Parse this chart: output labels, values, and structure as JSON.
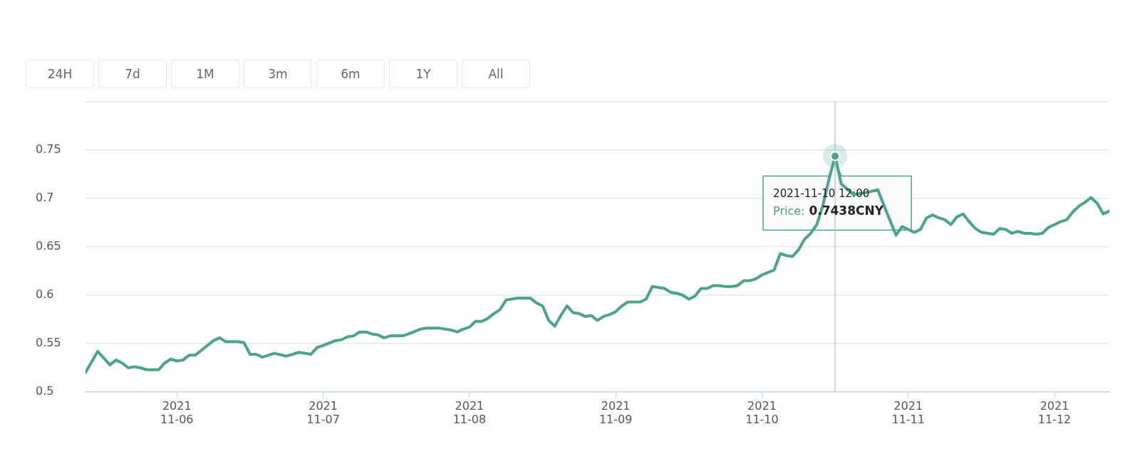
{
  "chart_data": {
    "type": "line",
    "x": [
      "2021-11-05T09:00",
      "2021-11-05T11:00",
      "2021-11-05T13:00",
      "2021-11-05T14:00",
      "2021-11-05T15:00",
      "2021-11-05T16:00",
      "2021-11-05T17:00",
      "2021-11-05T18:00",
      "2021-11-05T19:00",
      "2021-11-05T21:00",
      "2021-11-05T22:00",
      "2021-11-05T23:00",
      "2021-11-06T00:00",
      "2021-11-06T01:00",
      "2021-11-06T02:00",
      "2021-11-06T03:00",
      "2021-11-06T04:00",
      "2021-11-06T06:00",
      "2021-11-06T07:00",
      "2021-11-06T08:00",
      "2021-11-06T10:00",
      "2021-11-06T11:00",
      "2021-11-06T12:00",
      "2021-11-06T13:00",
      "2021-11-06T14:00",
      "2021-11-06T16:00",
      "2021-11-06T18:00",
      "2021-11-06T20:00",
      "2021-11-06T22:00",
      "2021-11-06T23:00",
      "2021-11-07T00:00",
      "2021-11-07T02:00",
      "2021-11-07T03:00",
      "2021-11-07T04:00",
      "2021-11-07T05:00",
      "2021-11-07T06:00",
      "2021-11-07T07:00",
      "2021-11-07T08:00",
      "2021-11-07T09:00",
      "2021-11-07T10:00",
      "2021-11-07T11:00",
      "2021-11-07T13:00",
      "2021-11-07T14:00",
      "2021-11-07T16:00",
      "2021-11-07T17:00",
      "2021-11-07T19:00",
      "2021-11-07T21:00",
      "2021-11-07T22:00",
      "2021-11-07T23:00",
      "2021-11-08T00:00",
      "2021-11-08T01:00",
      "2021-11-08T02:00",
      "2021-11-08T03:00",
      "2021-11-08T04:00",
      "2021-11-08T05:00",
      "2021-11-08T06:00",
      "2021-11-08T08:00",
      "2021-11-08T10:00",
      "2021-11-08T11:00",
      "2021-11-08T12:00",
      "2021-11-08T13:00",
      "2021-11-08T14:00",
      "2021-11-08T15:00",
      "2021-11-08T16:00",
      "2021-11-08T17:00",
      "2021-11-08T18:00",
      "2021-11-08T19:00",
      "2021-11-08T20:00",
      "2021-11-08T21:00",
      "2021-11-08T22:00",
      "2021-11-08T23:00",
      "2021-11-09T00:00",
      "2021-11-09T01:00",
      "2021-11-09T02:00",
      "2021-11-09T04:00",
      "2021-11-09T05:00",
      "2021-11-09T06:00",
      "2021-11-09T07:00",
      "2021-11-09T08:00",
      "2021-11-09T09:00",
      "2021-11-09T10:00",
      "2021-11-09T11:00",
      "2021-11-09T12:00",
      "2021-11-09T13:00",
      "2021-11-09T14:00",
      "2021-11-09T15:00",
      "2021-11-09T16:00",
      "2021-11-09T17:00",
      "2021-11-09T18:00",
      "2021-11-09T19:00",
      "2021-11-09T20:00",
      "2021-11-09T21:00",
      "2021-11-09T22:00",
      "2021-11-09T23:00",
      "2021-11-10T00:00",
      "2021-11-10T02:00",
      "2021-11-10T03:00",
      "2021-11-10T04:00",
      "2021-11-10T05:00",
      "2021-11-10T06:00",
      "2021-11-10T07:00",
      "2021-11-10T08:00",
      "2021-11-10T09:00",
      "2021-11-10T10:00",
      "2021-11-10T11:00",
      "2021-11-10T12:00",
      "2021-11-10T13:00",
      "2021-11-10T15:00",
      "2021-11-10T17:00",
      "2021-11-10T19:00",
      "2021-11-10T20:00",
      "2021-11-10T22:00",
      "2021-11-10T23:00",
      "2021-11-11T00:00",
      "2021-11-11T01:00",
      "2021-11-11T02:00",
      "2021-11-11T03:00",
      "2021-11-11T04:00",
      "2021-11-11T05:00",
      "2021-11-11T06:00",
      "2021-11-11T07:00",
      "2021-11-11T08:00",
      "2021-11-11T09:00",
      "2021-11-11T10:00",
      "2021-11-11T11:00",
      "2021-11-11T12:00",
      "2021-11-11T14:00",
      "2021-11-11T15:00",
      "2021-11-11T16:00",
      "2021-11-11T17:00",
      "2021-11-11T18:00",
      "2021-11-11T19:00",
      "2021-11-11T20:00",
      "2021-11-11T21:00",
      "2021-11-11T22:00",
      "2021-11-11T23:00",
      "2021-11-12T00:00",
      "2021-11-12T01:00",
      "2021-11-12T02:00",
      "2021-11-12T03:00",
      "2021-11-12T04:00",
      "2021-11-12T05:00",
      "2021-11-12T06:00",
      "2021-11-12T07:00",
      "2021-11-12T08:00",
      "2021-11-12T09:00"
    ],
    "series": [
      {
        "color": "#4aa38a",
        "values": [
          0.52,
          0.542,
          0.528,
          0.533,
          0.53,
          0.525,
          0.526,
          0.525,
          0.523,
          0.523,
          0.53,
          0.534,
          0.532,
          0.533,
          0.538,
          0.538,
          0.543,
          0.553,
          0.556,
          0.552,
          0.552,
          0.551,
          0.539,
          0.539,
          0.536,
          0.54,
          0.537,
          0.541,
          0.539,
          0.546,
          0.548,
          0.553,
          0.554,
          0.557,
          0.558,
          0.562,
          0.562,
          0.56,
          0.559,
          0.556,
          0.558,
          0.558,
          0.56,
          0.565,
          0.566,
          0.566,
          0.564,
          0.562,
          0.565,
          0.567,
          0.573,
          0.573,
          0.576,
          0.581,
          0.585,
          0.595,
          0.597,
          0.597,
          0.592,
          0.589,
          0.574,
          0.568,
          0.579,
          0.589,
          0.582,
          0.581,
          0.578,
          0.579,
          0.574,
          0.578,
          0.58,
          0.583,
          0.589,
          0.593,
          0.593,
          0.596,
          0.609,
          0.608,
          0.607,
          0.603,
          0.602,
          0.6,
          0.596,
          0.599,
          0.607,
          0.607,
          0.61,
          0.61,
          0.609,
          0.609,
          0.61,
          0.615,
          0.615,
          0.617,
          0.621,
          0.626,
          0.643,
          0.641,
          0.64,
          0.647,
          0.658,
          0.664,
          0.673,
          0.693,
          0.72,
          0.7438,
          0.715,
          0.704,
          0.706,
          0.709,
          0.693,
          0.662,
          0.671,
          0.668,
          0.665,
          0.668,
          0.68,
          0.683,
          0.68,
          0.678,
          0.673,
          0.681,
          0.684,
          0.676,
          0.669,
          0.665,
          0.663,
          0.669,
          0.668,
          0.664,
          0.666,
          0.664,
          0.664,
          0.663,
          0.664,
          0.67,
          0.673,
          0.676,
          0.678,
          0.686,
          0.692,
          0.696,
          0.701,
          0.695,
          0.684,
          0.687
        ]
      }
    ],
    "xlim": [
      "2021-11-05T09:00",
      "2021-11-12T09:00"
    ],
    "xticks": [
      {
        "value": "2021-11-06",
        "label": "2021\n11-06"
      },
      {
        "value": "2021-11-07",
        "label": "2021\n11-07"
      },
      {
        "value": "2021-11-08",
        "label": "2021\n11-08"
      },
      {
        "value": "2021-11-09",
        "label": "2021\n11-09"
      },
      {
        "value": "2021-11-10",
        "label": "2021\n11-10"
      },
      {
        "value": "2021-11-11",
        "label": "2021\n11-11"
      },
      {
        "value": "2021-11-12",
        "label": "2021\n11-12"
      }
    ],
    "ylim": [
      0.5,
      0.8
    ],
    "yticks": [
      0.5,
      0.55,
      0.6,
      0.65,
      0.7,
      0.75,
      {
        "value": 0.8,
        "label": null
      }
    ],
    "grid": "y",
    "legend": false,
    "marker": "none",
    "line_style": "solid",
    "ref_lines": [
      {
        "axis": "x",
        "value": "2021-11-10T12:00",
        "color": "#c4c7cc"
      }
    ],
    "annotations": [
      "24H",
      "7d",
      "1M",
      "3m",
      "6m",
      "1Y",
      "All",
      {
        "text": "2021-11-10 12:00\nPrice: 0.7438CNY",
        "x": "2021-11-10T12:00",
        "y": 0.7438
      }
    ]
  }
}
